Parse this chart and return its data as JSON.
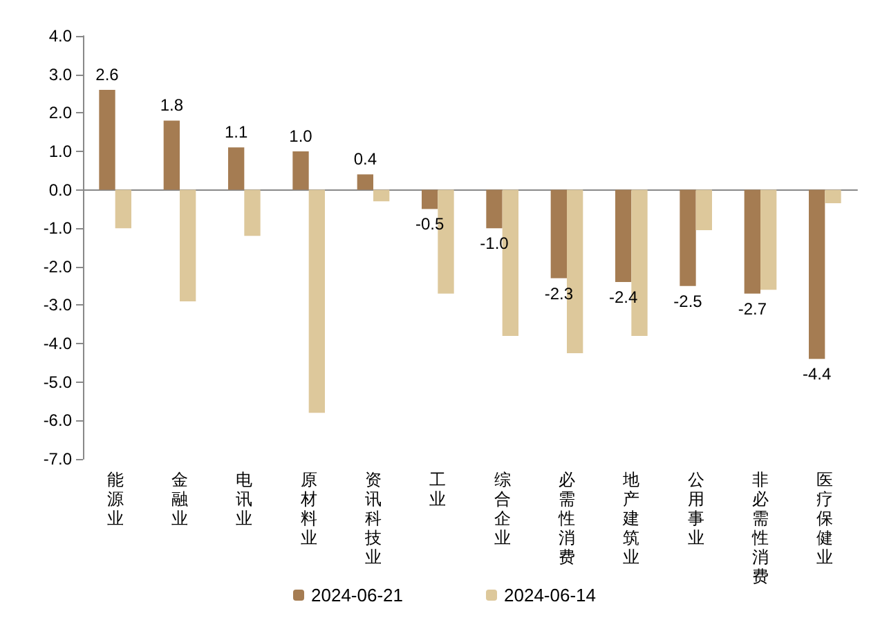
{
  "chart_data": {
    "type": "bar",
    "categories": [
      "能源业",
      "金融业",
      "电讯业",
      "原材料业",
      "资讯科技业",
      "工业",
      "综合企业",
      "必需性消费",
      "地产建筑业",
      "公用事业",
      "非必需性消费",
      "医疗保健业"
    ],
    "series": [
      {
        "name": "2024-06-21",
        "color": "#a57c52",
        "values": [
          2.6,
          1.8,
          1.1,
          1.0,
          0.4,
          -0.5,
          -1.0,
          -2.3,
          -2.4,
          -2.5,
          -2.7,
          -4.4
        ],
        "value_labels": [
          "2.6",
          "1.8",
          "1.1",
          "1.0",
          "0.4",
          "-0.5",
          "-1.0",
          "-2.3",
          "-2.4",
          "-2.5",
          "-2.7",
          "-4.4"
        ]
      },
      {
        "name": "2024-06-14",
        "color": "#ddc89b",
        "values": [
          -1.0,
          -2.9,
          -1.2,
          -5.8,
          -0.3,
          -2.7,
          -3.8,
          -4.25,
          -3.8,
          -1.05,
          -2.6,
          -0.35
        ]
      }
    ],
    "ylim": [
      -7,
      4
    ],
    "yticks": [
      {
        "value": 4,
        "label": "4.0"
      },
      {
        "value": 3,
        "label": "3.0"
      },
      {
        "value": 2,
        "label": "2.0"
      },
      {
        "value": 1,
        "label": "1.0"
      },
      {
        "value": 0,
        "label": "0.0"
      },
      {
        "value": -1,
        "label": "-1.0"
      },
      {
        "value": -2,
        "label": "-2.0"
      },
      {
        "value": -3,
        "label": "-3.0"
      },
      {
        "value": -4,
        "label": "-4.0"
      },
      {
        "value": -5,
        "label": "-5.0"
      },
      {
        "value": -6,
        "label": "-6.0"
      },
      {
        "value": -7,
        "label": "-7.0"
      }
    ],
    "legend": "bottom"
  }
}
